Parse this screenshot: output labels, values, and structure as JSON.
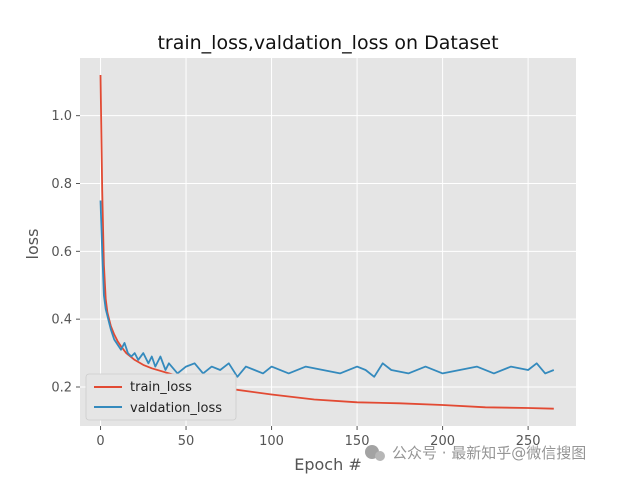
{
  "chart_data": {
    "type": "line",
    "title": "train_loss,valdation_loss on Dataset",
    "xlabel": "Epoch #",
    "ylabel": "loss",
    "xlim": [
      -12,
      278
    ],
    "ylim": [
      0.085,
      1.17
    ],
    "xticks": [
      0,
      50,
      100,
      150,
      200,
      250
    ],
    "yticks": [
      0.2,
      0.4,
      0.6,
      0.8,
      1.0
    ],
    "ytick_labels": [
      "0.2",
      "0.4",
      "0.6",
      "0.8",
      "1.0"
    ],
    "grid": true,
    "legend_position": "lower-left",
    "series": [
      {
        "name": "train_loss",
        "color": "#e24a33",
        "x": [
          0,
          1,
          2,
          3,
          4,
          5,
          6,
          8,
          10,
          12,
          15,
          20,
          25,
          30,
          40,
          50,
          60,
          75,
          100,
          125,
          150,
          175,
          200,
          225,
          250,
          265
        ],
        "y": [
          1.12,
          0.78,
          0.56,
          0.46,
          0.42,
          0.4,
          0.38,
          0.355,
          0.335,
          0.32,
          0.3,
          0.28,
          0.265,
          0.255,
          0.24,
          0.225,
          0.21,
          0.195,
          0.178,
          0.163,
          0.155,
          0.152,
          0.147,
          0.14,
          0.138,
          0.136
        ]
      },
      {
        "name": "valdation_loss",
        "color": "#348abd",
        "x": [
          0,
          1,
          2,
          3,
          4,
          5,
          6,
          8,
          10,
          12,
          14,
          16,
          18,
          20,
          22,
          25,
          28,
          30,
          32,
          35,
          38,
          40,
          45,
          50,
          55,
          60,
          65,
          70,
          75,
          80,
          85,
          90,
          95,
          100,
          110,
          120,
          130,
          140,
          150,
          155,
          160,
          165,
          170,
          180,
          190,
          200,
          210,
          220,
          230,
          240,
          250,
          255,
          260,
          265
        ],
        "y": [
          0.75,
          0.6,
          0.47,
          0.43,
          0.41,
          0.39,
          0.37,
          0.34,
          0.325,
          0.31,
          0.33,
          0.3,
          0.29,
          0.3,
          0.28,
          0.3,
          0.27,
          0.29,
          0.26,
          0.29,
          0.25,
          0.27,
          0.24,
          0.26,
          0.27,
          0.24,
          0.26,
          0.25,
          0.27,
          0.23,
          0.26,
          0.25,
          0.24,
          0.26,
          0.24,
          0.26,
          0.25,
          0.24,
          0.26,
          0.25,
          0.23,
          0.27,
          0.25,
          0.24,
          0.26,
          0.24,
          0.25,
          0.26,
          0.24,
          0.26,
          0.25,
          0.27,
          0.24,
          0.25
        ]
      }
    ]
  },
  "watermark": "公众号 · 最新知乎@微信搜图"
}
